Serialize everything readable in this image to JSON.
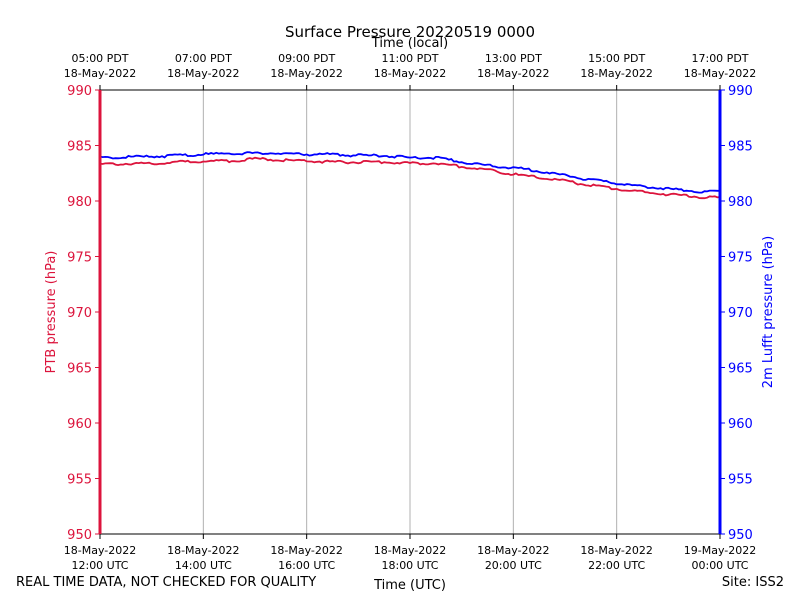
{
  "chart_data": {
    "type": "line",
    "title": "Surface Pressure 20220519 0000",
    "top_axis_label": "Time (local)",
    "xlabel": "Time (UTC)",
    "ylabel_left": "PTB pressure (hPa)",
    "ylabel_right": "2m Lufft pressure (hPa)",
    "ylim_left": [
      950,
      990
    ],
    "ylim_right": [
      950,
      990
    ],
    "yticks": [
      950,
      955,
      960,
      965,
      970,
      975,
      980,
      985,
      990
    ],
    "xlim_hours_utc": [
      12,
      24
    ],
    "xtick_hours": [
      12,
      14,
      16,
      18,
      20,
      22,
      24
    ],
    "xticks_bottom": [
      {
        "line1": "18-May-2022",
        "line2": "12:00 UTC"
      },
      {
        "line1": "18-May-2022",
        "line2": "14:00 UTC"
      },
      {
        "line1": "18-May-2022",
        "line2": "16:00 UTC"
      },
      {
        "line1": "18-May-2022",
        "line2": "18:00 UTC"
      },
      {
        "line1": "18-May-2022",
        "line2": "20:00 UTC"
      },
      {
        "line1": "18-May-2022",
        "line2": "22:00 UTC"
      },
      {
        "line1": "19-May-2022",
        "line2": "00:00 UTC"
      }
    ],
    "xticks_top": [
      {
        "line1": "05:00 PDT",
        "line2": "18-May-2022"
      },
      {
        "line1": "07:00 PDT",
        "line2": "18-May-2022"
      },
      {
        "line1": "09:00 PDT",
        "line2": "18-May-2022"
      },
      {
        "line1": "11:00 PDT",
        "line2": "18-May-2022"
      },
      {
        "line1": "13:00 PDT",
        "line2": "18-May-2022"
      },
      {
        "line1": "15:00 PDT",
        "line2": "18-May-2022"
      },
      {
        "line1": "17:00 PDT",
        "line2": "18-May-2022"
      }
    ],
    "grid": "vertical",
    "series": [
      {
        "name": "PTB pressure",
        "axis": "left",
        "color": "#dc143c",
        "x": [
          12.0,
          13.0,
          14.0,
          14.5,
          15.0,
          15.5,
          16.0,
          16.5,
          17.0,
          17.5,
          18.0,
          18.5,
          19.0,
          19.5,
          20.0,
          20.5,
          21.0,
          21.5,
          22.0,
          22.5,
          23.0,
          23.5,
          24.0
        ],
        "values": [
          983.3,
          983.4,
          983.6,
          983.6,
          983.8,
          983.7,
          983.6,
          983.5,
          983.5,
          983.5,
          983.4,
          983.4,
          983.1,
          982.8,
          982.4,
          982.1,
          981.8,
          981.4,
          981.1,
          980.8,
          980.6,
          980.4,
          980.3
        ]
      },
      {
        "name": "2m Lufft pressure",
        "axis": "right",
        "color": "#0000ff",
        "x": [
          12.0,
          13.0,
          14.0,
          14.5,
          15.0,
          15.5,
          16.0,
          16.5,
          17.0,
          17.5,
          18.0,
          18.5,
          19.0,
          19.5,
          20.0,
          20.5,
          21.0,
          21.5,
          22.0,
          22.5,
          23.0,
          23.5,
          24.0
        ],
        "values": [
          983.9,
          984.0,
          984.2,
          984.3,
          984.3,
          984.3,
          984.2,
          984.2,
          984.1,
          984.1,
          983.9,
          983.9,
          983.5,
          983.2,
          983.0,
          982.7,
          982.3,
          981.9,
          981.6,
          981.3,
          981.1,
          980.9,
          980.8
        ]
      }
    ]
  },
  "footer": {
    "left": "REAL TIME DATA, NOT CHECKED FOR QUALITY",
    "right": "Site: ISS2"
  }
}
